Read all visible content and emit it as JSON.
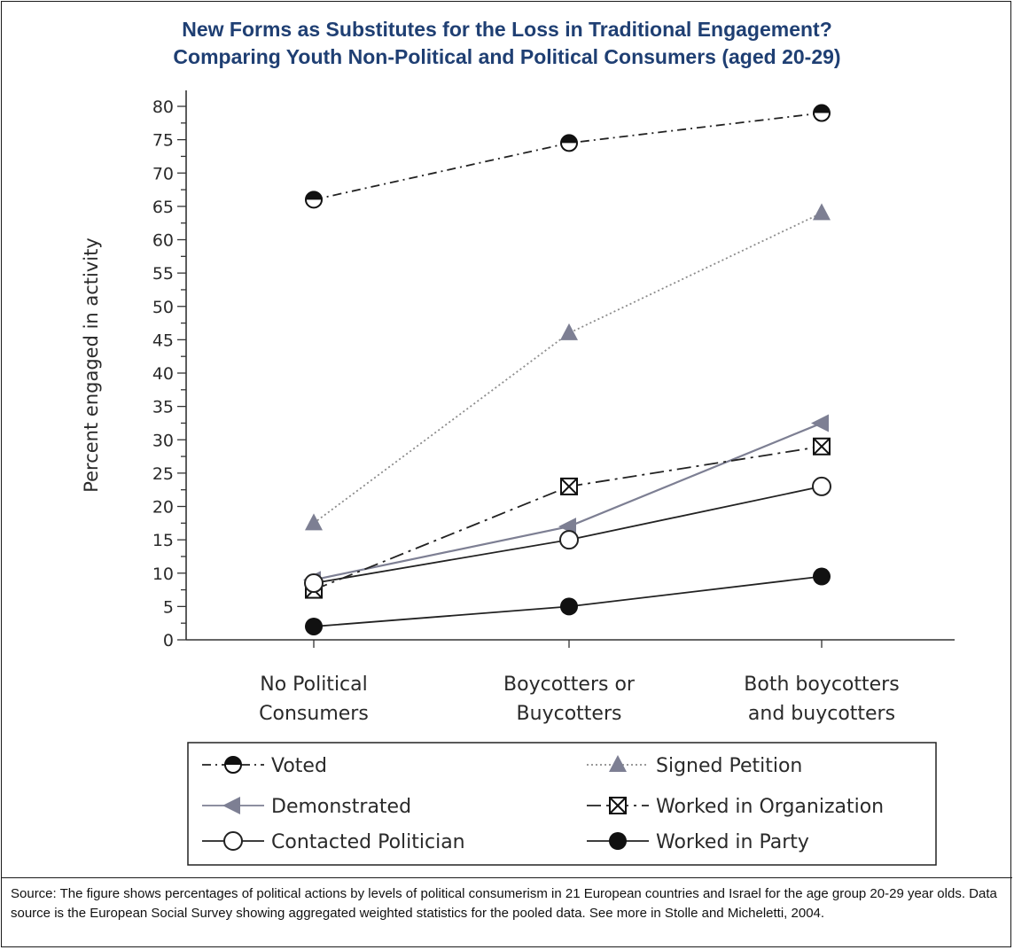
{
  "title_line1": "New Forms as Substitutes for the Loss in Traditional Engagement?",
  "title_line2": "Comparing Youth Non-Political and Political Consumers (aged 20-29)",
  "source_note": "Source: The figure shows percentages of political actions by levels of political consumerism in 21 European countries and Israel for the age group 20-29 year olds. Data source is the European Social Survey showing aggregated weighted statistics for the pooled data. See more in Stolle and Micheletti, 2004.",
  "colors": {
    "title": "#1f3f73",
    "axis": "#333333",
    "marker_gray": "#7d7f93",
    "line_dark": "#222222",
    "petition_line": "#8c8c8c"
  },
  "chart_data": {
    "type": "line",
    "ylabel": "Percent engaged in activity",
    "xlabel": "",
    "ylim": [
      0,
      80
    ],
    "yticks": [
      0,
      5,
      10,
      15,
      20,
      25,
      30,
      35,
      40,
      45,
      50,
      55,
      60,
      65,
      70,
      75,
      80
    ],
    "categories": [
      [
        "No Political",
        "Consumers"
      ],
      [
        "Boycotters or",
        "Buycotters"
      ],
      [
        "Both boycotters",
        "and buycotters"
      ]
    ],
    "legend_position": "bottom",
    "series": [
      {
        "name": "Voted",
        "values": [
          66,
          74.5,
          79
        ],
        "marker": "half-circle",
        "line": "dash-dot",
        "color": "#222222"
      },
      {
        "name": "Signed Petition",
        "values": [
          17.5,
          46,
          64
        ],
        "marker": "triangle-up",
        "line": "dotted",
        "color": "#8c8c8c"
      },
      {
        "name": "Demonstrated",
        "values": [
          9,
          17,
          32.5
        ],
        "marker": "triangle-left",
        "line": "solid",
        "color": "#7d7f93"
      },
      {
        "name": "Worked in Organization",
        "values": [
          7.5,
          23,
          29
        ],
        "marker": "x-square",
        "line": "long-dash-dot",
        "color": "#222222"
      },
      {
        "name": "Contacted Politician",
        "values": [
          8.5,
          15,
          23
        ],
        "marker": "open-circle",
        "line": "solid",
        "color": "#222222"
      },
      {
        "name": "Worked in Party",
        "values": [
          2,
          5,
          9.5
        ],
        "marker": "filled-circle",
        "line": "solid",
        "color": "#222222"
      }
    ]
  }
}
